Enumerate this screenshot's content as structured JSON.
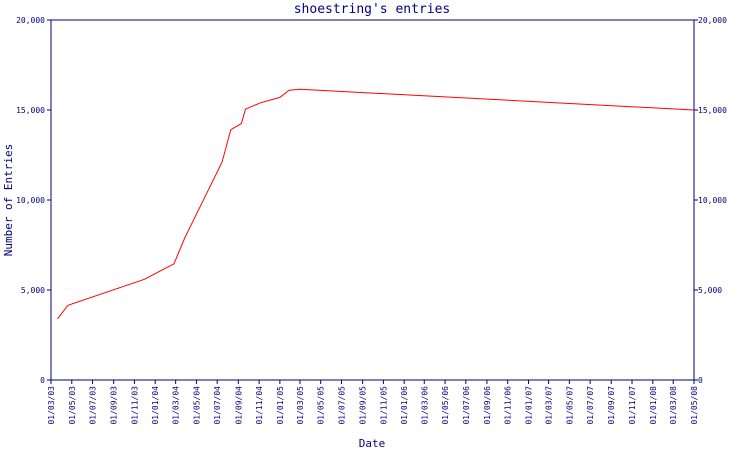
{
  "chart_data": {
    "type": "line",
    "title": "shoestring's entries",
    "xlabel": "Date",
    "ylabel": "Number of Entries",
    "ylim": [
      0,
      20000
    ],
    "y_ticks": [
      0,
      5000,
      10000,
      15000,
      20000
    ],
    "y_tick_labels": [
      "0",
      "5,000",
      "10,000",
      "15,000",
      "20,000"
    ],
    "x_tick_labels": [
      "01/03/03",
      "01/05/03",
      "01/07/03",
      "01/09/03",
      "01/11/03",
      "01/01/04",
      "01/03/04",
      "01/05/04",
      "01/07/04",
      "01/09/04",
      "01/11/04",
      "01/01/05",
      "01/03/05",
      "01/05/05",
      "01/07/05",
      "01/09/05",
      "01/11/05",
      "01/01/06",
      "01/03/06",
      "01/05/06",
      "01/07/06",
      "01/09/06",
      "01/11/06",
      "01/01/07",
      "01/03/07",
      "01/05/07",
      "01/07/07",
      "01/09/07",
      "01/11/07",
      "01/01/08",
      "01/03/08",
      "01/05/08"
    ],
    "grid": false,
    "series": [
      {
        "color": "#ff0000",
        "x": [
          "2003-03-20",
          "2003-04-20",
          "2003-12-01",
          "2004-01-20",
          "2004-02-25",
          "2004-03-28",
          "2004-07-15",
          "2004-08-10",
          "2004-09-10",
          "2004-09-22",
          "2004-11-05",
          "2005-01-01",
          "2005-01-28",
          "2005-03-01",
          "2008-05-01"
        ],
        "y": [
          3400,
          4150,
          5600,
          6100,
          6450,
          7900,
          12100,
          13900,
          14250,
          15050,
          15400,
          15700,
          16100,
          16150,
          15000
        ]
      }
    ]
  },
  "colors": {
    "axis": "#000080",
    "line": "#ff0000",
    "text": "#000080",
    "background": "#ffffff"
  }
}
